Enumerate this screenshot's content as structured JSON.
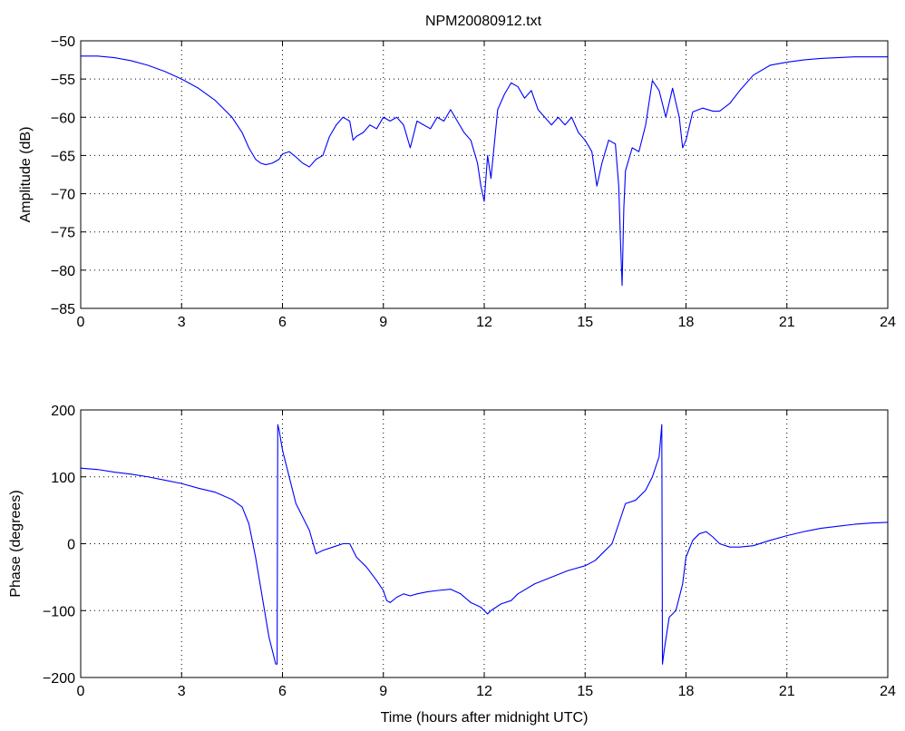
{
  "figure": {
    "title": "NPM20080912.txt",
    "colors": {
      "series": "#0000ff",
      "axes": "#000000",
      "background": "#ffffff"
    }
  },
  "chart_data": [
    {
      "type": "line",
      "title": "NPM20080912.txt",
      "xlabel": "",
      "ylabel": "Amplitude (dB)",
      "xlim": [
        0,
        24
      ],
      "ylim": [
        -85,
        -50
      ],
      "xticks": [
        0,
        3,
        6,
        9,
        12,
        15,
        18,
        21,
        24
      ],
      "yticks": [
        -85,
        -80,
        -75,
        -70,
        -65,
        -60,
        -55,
        -50
      ],
      "xtick_labels": [
        "0",
        "3",
        "6",
        "9",
        "12",
        "15",
        "18",
        "21",
        "24"
      ],
      "ytick_labels": [
        "−85",
        "−80",
        "−75",
        "−70",
        "−65",
        "−60",
        "−55",
        "−50"
      ],
      "grid": true,
      "series": [
        {
          "color": "#0000ff",
          "x": [
            0,
            0.5,
            1,
            1.5,
            2,
            2.5,
            3,
            3.5,
            4,
            4.5,
            4.8,
            5,
            5.2,
            5.35,
            5.5,
            5.7,
            5.9,
            6,
            6.2,
            6.4,
            6.6,
            6.8,
            7,
            7.2,
            7.4,
            7.6,
            7.8,
            8,
            8.1,
            8.2,
            8.4,
            8.6,
            8.8,
            9,
            9.2,
            9.4,
            9.6,
            9.8,
            10,
            10.2,
            10.4,
            10.6,
            10.8,
            11,
            11.2,
            11.4,
            11.6,
            11.8,
            11.9,
            12,
            12.1,
            12.2,
            12.4,
            12.6,
            12.8,
            13,
            13.2,
            13.4,
            13.6,
            13.8,
            14,
            14.2,
            14.4,
            14.6,
            14.8,
            15,
            15.2,
            15.35,
            15.5,
            15.7,
            15.9,
            16,
            16.05,
            16.1,
            16.15,
            16.2,
            16.4,
            16.6,
            16.8,
            17,
            17.2,
            17.4,
            17.6,
            17.8,
            17.9,
            18,
            18.2,
            18.5,
            18.8,
            19,
            19.3,
            19.6,
            20,
            20.5,
            21,
            21.5,
            22,
            22.5,
            23,
            23.5,
            24
          ],
          "values": [
            -52,
            -52,
            -52.2,
            -52.6,
            -53.2,
            -54,
            -55,
            -56.2,
            -57.8,
            -60,
            -62,
            -64,
            -65.5,
            -66,
            -66.2,
            -66,
            -65.5,
            -64.8,
            -64.5,
            -65.2,
            -66,
            -66.5,
            -65.5,
            -65,
            -62.5,
            -61,
            -60,
            -60.5,
            -63,
            -62.5,
            -62,
            -61,
            -61.5,
            -60,
            -60.5,
            -60,
            -61,
            -64,
            -60.5,
            -61,
            -61.5,
            -60,
            -60.5,
            -59,
            -60.5,
            -62,
            -63,
            -66,
            -69,
            -71,
            -65,
            -68,
            -59,
            -57,
            -55.5,
            -56,
            -57.5,
            -56.5,
            -59,
            -60,
            -61,
            -60,
            -61,
            -60,
            -62,
            -63,
            -64.5,
            -69,
            -66,
            -63,
            -63.5,
            -69,
            -76,
            -82,
            -72,
            -67,
            -64,
            -64.5,
            -61,
            -55.2,
            -56.5,
            -60,
            -56.2,
            -60,
            -64,
            -63,
            -59.3,
            -58.8,
            -59.2,
            -59.2,
            -58.2,
            -56.5,
            -54.5,
            -53.2,
            -52.8,
            -52.5,
            -52.3,
            -52.2,
            -52.1,
            -52.1,
            -52.1
          ]
        }
      ]
    },
    {
      "type": "line",
      "title": "",
      "xlabel": "Time (hours after midnight UTC)",
      "ylabel": "Phase (degrees)",
      "xlim": [
        0,
        24
      ],
      "ylim": [
        -200,
        200
      ],
      "xticks": [
        0,
        3,
        6,
        9,
        12,
        15,
        18,
        21,
        24
      ],
      "yticks": [
        -200,
        -100,
        0,
        100,
        200
      ],
      "xtick_labels": [
        "0",
        "3",
        "6",
        "9",
        "12",
        "15",
        "18",
        "21",
        "24"
      ],
      "ytick_labels": [
        "−200",
        "−100",
        "0",
        "100",
        "200"
      ],
      "grid": true,
      "series": [
        {
          "color": "#0000ff",
          "x": [
            0,
            0.5,
            1,
            1.5,
            2,
            2.5,
            3,
            3.5,
            4,
            4.5,
            4.8,
            5,
            5.2,
            5.4,
            5.6,
            5.8,
            5.84,
            5.86,
            5.9,
            6,
            6.2,
            6.4,
            6.6,
            6.8,
            7,
            7.2,
            7.5,
            7.8,
            8,
            8.2,
            8.5,
            8.8,
            9,
            9.1,
            9.2,
            9.4,
            9.6,
            9.8,
            10,
            10.3,
            10.6,
            11,
            11.3,
            11.6,
            11.9,
            12,
            12.1,
            12.2,
            12.5,
            12.8,
            13,
            13.5,
            14,
            14.5,
            15,
            15.3,
            15.5,
            15.8,
            16,
            16.2,
            16.5,
            16.8,
            17,
            17.2,
            17.28,
            17.3,
            17.35,
            17.5,
            17.7,
            17.9,
            18,
            18.2,
            18.4,
            18.6,
            18.8,
            19,
            19.3,
            19.6,
            20,
            20.5,
            21,
            21.5,
            22,
            22.5,
            23,
            23.5,
            24
          ],
          "values": [
            113,
            111,
            107,
            104,
            100,
            95,
            90,
            83,
            77,
            66,
            55,
            30,
            -20,
            -80,
            -140,
            -180,
            -180,
            178,
            170,
            140,
            100,
            60,
            40,
            20,
            -15,
            -10,
            -5,
            0,
            0,
            -20,
            -35,
            -55,
            -70,
            -85,
            -88,
            -80,
            -75,
            -78,
            -75,
            -72,
            -70,
            -68,
            -75,
            -88,
            -95,
            -100,
            -105,
            -100,
            -90,
            -85,
            -75,
            -60,
            -50,
            -40,
            -33,
            -25,
            -15,
            0,
            30,
            60,
            65,
            80,
            100,
            130,
            178,
            -180,
            -160,
            -110,
            -100,
            -60,
            -20,
            5,
            15,
            18,
            10,
            0,
            -5,
            -5,
            -3,
            5,
            12,
            18,
            23,
            26,
            29,
            31,
            32
          ]
        }
      ]
    }
  ]
}
